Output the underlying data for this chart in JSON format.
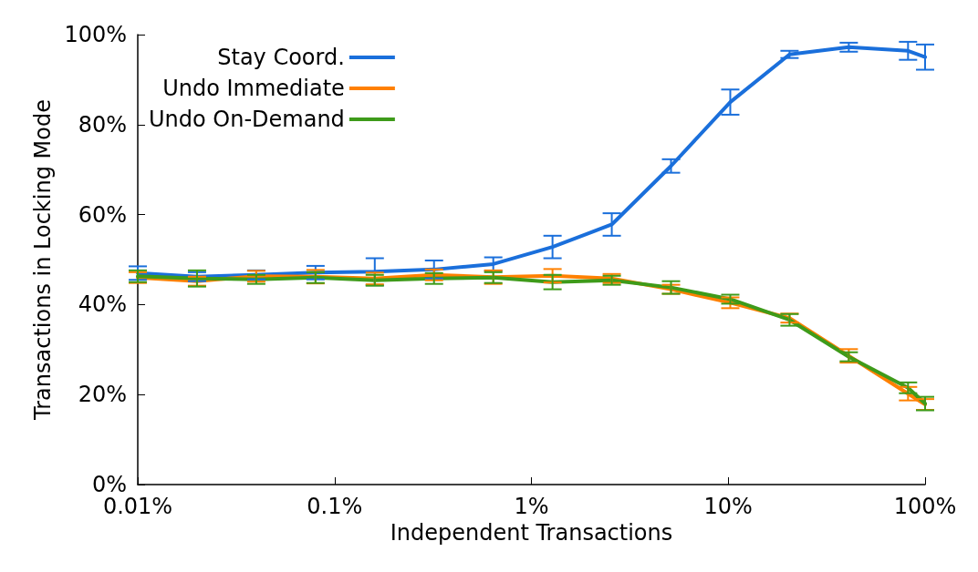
{
  "chart_data": {
    "type": "line",
    "xlabel": "Independent Transactions",
    "ylabel": "Transactions in Locking Mode",
    "log": "x",
    "grid": false,
    "legend": "top left",
    "marker": "none",
    "line_style": "solid",
    "x": [
      0.01,
      0.02,
      0.04,
      0.08,
      0.16,
      0.32,
      0.64,
      1.28,
      2.56,
      5.12,
      10.24,
      20.48,
      40.96,
      81.92,
      100
    ],
    "xlim": [
      0.01,
      100
    ],
    "xticks": [
      {
        "value": 0.01,
        "label": "0.01%"
      },
      {
        "value": 0.1,
        "label": "0.1%"
      },
      {
        "value": 1,
        "label": "1%"
      },
      {
        "value": 10,
        "label": "10%"
      },
      {
        "value": 100,
        "label": "100%"
      }
    ],
    "ylim": [
      0,
      100
    ],
    "yticks": [
      {
        "value": 0,
        "label": "0%"
      },
      {
        "value": 20,
        "label": "20%"
      },
      {
        "value": 40,
        "label": "40%"
      },
      {
        "value": 60,
        "label": "60%"
      },
      {
        "value": 80,
        "label": "80%"
      },
      {
        "value": 100,
        "label": "100%"
      }
    ],
    "series": [
      {
        "name": "Stay Coord.",
        "color": "#1a6fdb",
        "values": [
          47,
          46.2,
          46.6,
          47.1,
          47.3,
          47.8,
          49,
          52.8,
          57.8,
          70.8,
          85,
          95.6,
          97.2,
          96.4,
          95
        ],
        "errors": [
          1.5,
          1,
          1,
          1.5,
          3,
          2,
          1.5,
          2.5,
          2.5,
          1.5,
          2.8,
          0.8,
          1,
          2,
          2.8
        ]
      },
      {
        "name": "Undo Immediate",
        "color": "#ff8000",
        "values": [
          46,
          45.2,
          46.3,
          46.2,
          45.8,
          46.6,
          46.1,
          46.4,
          45.8,
          43.4,
          40.4,
          37,
          28.6,
          20.2,
          17.8
        ],
        "errors": [
          1.2,
          1,
          1.2,
          1.5,
          1.3,
          1.2,
          1.5,
          1.5,
          1,
          1,
          1.2,
          1,
          1.5,
          1.5,
          1.2
        ]
      },
      {
        "name": "Undo On-Demand",
        "color": "#3e9b1a",
        "values": [
          46.3,
          45.8,
          45.6,
          46,
          45.4,
          45.8,
          46,
          45,
          45.4,
          43.8,
          41.2,
          36.6,
          28.4,
          21.5,
          18
        ],
        "errors": [
          1.3,
          1.8,
          1,
          1.2,
          1.2,
          1.2,
          1.2,
          1.6,
          1,
          1.4,
          1,
          1.3,
          1,
          1.2,
          1.5
        ]
      }
    ]
  }
}
